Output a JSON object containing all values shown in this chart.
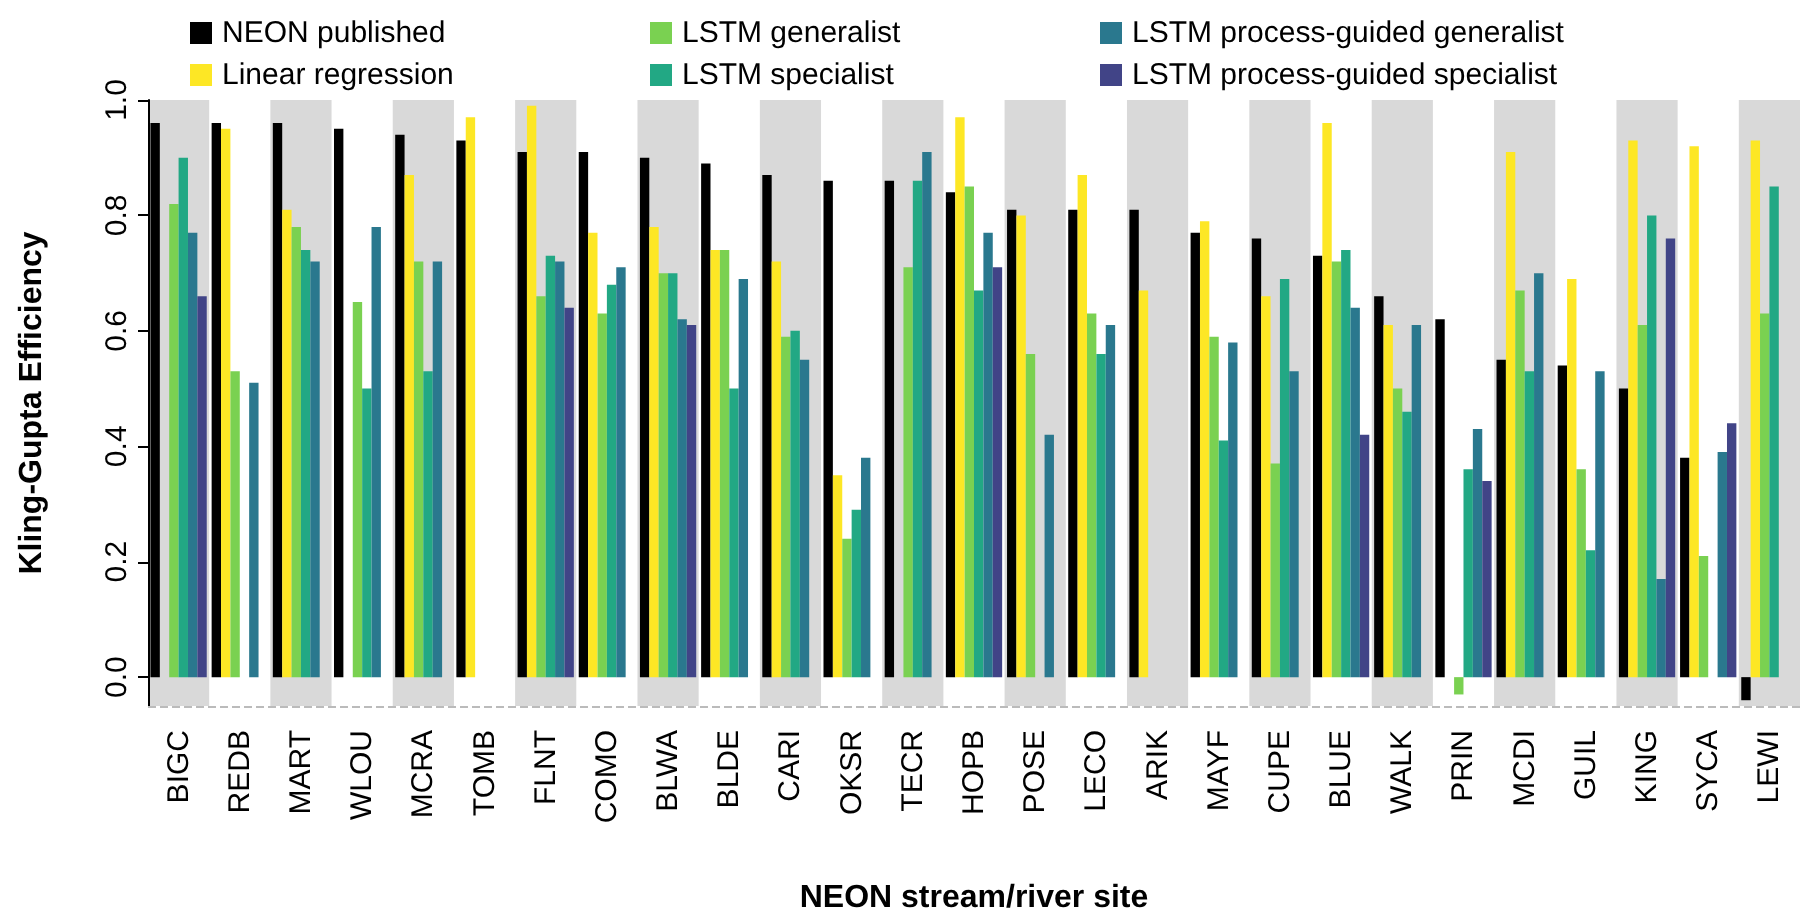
{
  "chart_data": {
    "type": "bar",
    "xlabel": "NEON stream/river site",
    "ylabel": "Kling-Gupta Efficiency",
    "categories": [
      "BIGC",
      "REDB",
      "MART",
      "WLOU",
      "MCRA",
      "TOMB",
      "FLNT",
      "COMO",
      "BLWA",
      "BLDE",
      "CARI",
      "OKSR",
      "TECR",
      "HOPB",
      "POSE",
      "LECO",
      "ARIK",
      "MAYF",
      "CUPE",
      "BLUE",
      "WALK",
      "PRIN",
      "MCDI",
      "GUIL",
      "KING",
      "SYCA",
      "LEWI"
    ],
    "series": [
      {
        "name": "NEON published",
        "color": "#000000",
        "values": [
          0.96,
          0.96,
          0.96,
          0.95,
          0.94,
          0.93,
          0.91,
          0.91,
          0.9,
          0.89,
          0.87,
          0.86,
          0.86,
          0.84,
          0.81,
          0.81,
          0.81,
          0.77,
          0.76,
          0.73,
          0.66,
          0.62,
          0.55,
          0.54,
          0.5,
          0.38,
          -0.04
        ]
      },
      {
        "name": "Linear regression",
        "color": "#fde725",
        "values": [
          null,
          0.95,
          0.81,
          null,
          0.87,
          0.97,
          0.99,
          0.77,
          0.78,
          0.74,
          0.72,
          0.35,
          null,
          0.97,
          0.8,
          0.87,
          0.67,
          0.79,
          0.66,
          0.96,
          0.61,
          null,
          0.91,
          0.69,
          0.93,
          0.92,
          0.93
        ]
      },
      {
        "name": "LSTM generalist",
        "color": "#7ad151",
        "values": [
          0.82,
          0.53,
          0.78,
          0.65,
          0.72,
          null,
          0.66,
          0.63,
          0.7,
          0.74,
          0.59,
          0.24,
          0.71,
          0.85,
          0.56,
          0.63,
          null,
          0.59,
          0.37,
          0.72,
          0.5,
          -0.03,
          0.67,
          0.36,
          0.61,
          0.21,
          0.63
        ]
      },
      {
        "name": "LSTM specialist",
        "color": "#22a884",
        "values": [
          0.9,
          null,
          0.74,
          0.5,
          0.53,
          null,
          0.73,
          0.68,
          0.7,
          0.5,
          0.6,
          0.29,
          0.86,
          0.67,
          null,
          0.56,
          null,
          0.41,
          0.69,
          0.74,
          0.46,
          0.36,
          0.53,
          0.22,
          0.8,
          null,
          0.85
        ]
      },
      {
        "name": "LSTM process-guided generalist",
        "color": "#2a788e",
        "values": [
          0.77,
          0.51,
          0.72,
          0.78,
          0.72,
          null,
          0.72,
          0.71,
          0.62,
          0.69,
          0.55,
          0.38,
          0.91,
          0.77,
          0.42,
          0.61,
          null,
          0.58,
          0.53,
          0.64,
          0.61,
          0.43,
          0.7,
          0.53,
          0.17,
          0.39,
          null
        ]
      },
      {
        "name": "LSTM process-guided specialist",
        "color": "#414487",
        "values": [
          0.66,
          null,
          null,
          null,
          null,
          null,
          0.64,
          null,
          0.61,
          null,
          null,
          null,
          null,
          0.71,
          null,
          null,
          null,
          null,
          null,
          0.42,
          null,
          0.34,
          null,
          null,
          0.76,
          0.44,
          null
        ]
      }
    ],
    "ylim": [
      -0.05,
      1.0
    ],
    "yticks": [
      {
        "value": 0,
        "label": "0.0"
      },
      0.2,
      0.4,
      0.6,
      0.8,
      {
        "value": 1,
        "label": "1.0"
      }
    ],
    "ref_lines": [
      {
        "axis": "y",
        "value": -0.05,
        "label": null,
        "color": "#bbbbbb",
        "line_style": "dashed"
      }
    ],
    "legend": "top",
    "grid": false
  }
}
